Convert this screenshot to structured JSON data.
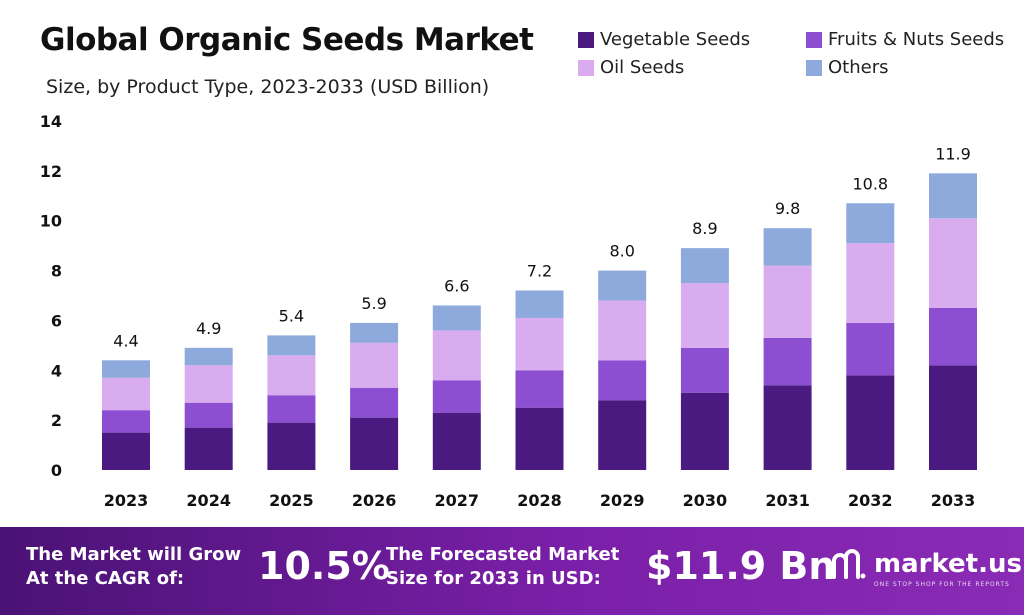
{
  "header": {
    "title": "Global Organic Seeds Market",
    "subtitle": "Size, by Product Type, 2023-2033 (USD Billion)"
  },
  "legend": [
    {
      "label": "Vegetable Seeds",
      "color": "#4b1a80"
    },
    {
      "label": "Fruits & Nuts Seeds",
      "color": "#8d4fd1"
    },
    {
      "label": "Oil Seeds",
      "color": "#d9acef"
    },
    {
      "label": "Others",
      "color": "#8ea9dc"
    }
  ],
  "chart_data": {
    "type": "bar",
    "stacked": true,
    "categories": [
      "2023",
      "2024",
      "2025",
      "2026",
      "2027",
      "2028",
      "2029",
      "2030",
      "2031",
      "2032",
      "2033"
    ],
    "series": [
      {
        "name": "Vegetable Seeds",
        "values": [
          1.5,
          1.7,
          1.9,
          2.1,
          2.3,
          2.5,
          2.8,
          3.1,
          3.4,
          3.8,
          4.2
        ]
      },
      {
        "name": "Fruits & Nuts Seeds",
        "values": [
          0.9,
          1.0,
          1.1,
          1.2,
          1.3,
          1.5,
          1.6,
          1.8,
          1.9,
          2.1,
          2.3
        ]
      },
      {
        "name": "Oil Seeds",
        "values": [
          1.3,
          1.5,
          1.6,
          1.8,
          2.0,
          2.1,
          2.4,
          2.6,
          2.9,
          3.2,
          3.6
        ]
      },
      {
        "name": "Others",
        "values": [
          0.7,
          0.7,
          0.8,
          0.8,
          1.0,
          1.1,
          1.2,
          1.4,
          1.5,
          1.6,
          1.8
        ]
      }
    ],
    "totals": [
      "4.4",
      "4.9",
      "5.4",
      "5.9",
      "6.6",
      "7.2",
      "8.0",
      "8.9",
      "9.8",
      "10.8",
      "11.9"
    ],
    "ylim": [
      0,
      14
    ],
    "yticks": [
      "0",
      "2",
      "4",
      "6",
      "8",
      "10",
      "12",
      "14"
    ],
    "grid": false,
    "legend_position": "top-right"
  },
  "footer": {
    "cagr_label_line1": "The Market will Grow",
    "cagr_label_line2": "At the CAGR of:",
    "cagr_value": "10.5%",
    "forecast_label_line1": "The Forecasted Market",
    "forecast_label_line2": "Size for 2033 in USD:",
    "forecast_value": "$11.9 Bn",
    "brand_name": "market.us",
    "brand_tagline": "ONE STOP SHOP FOR THE REPORTS"
  }
}
